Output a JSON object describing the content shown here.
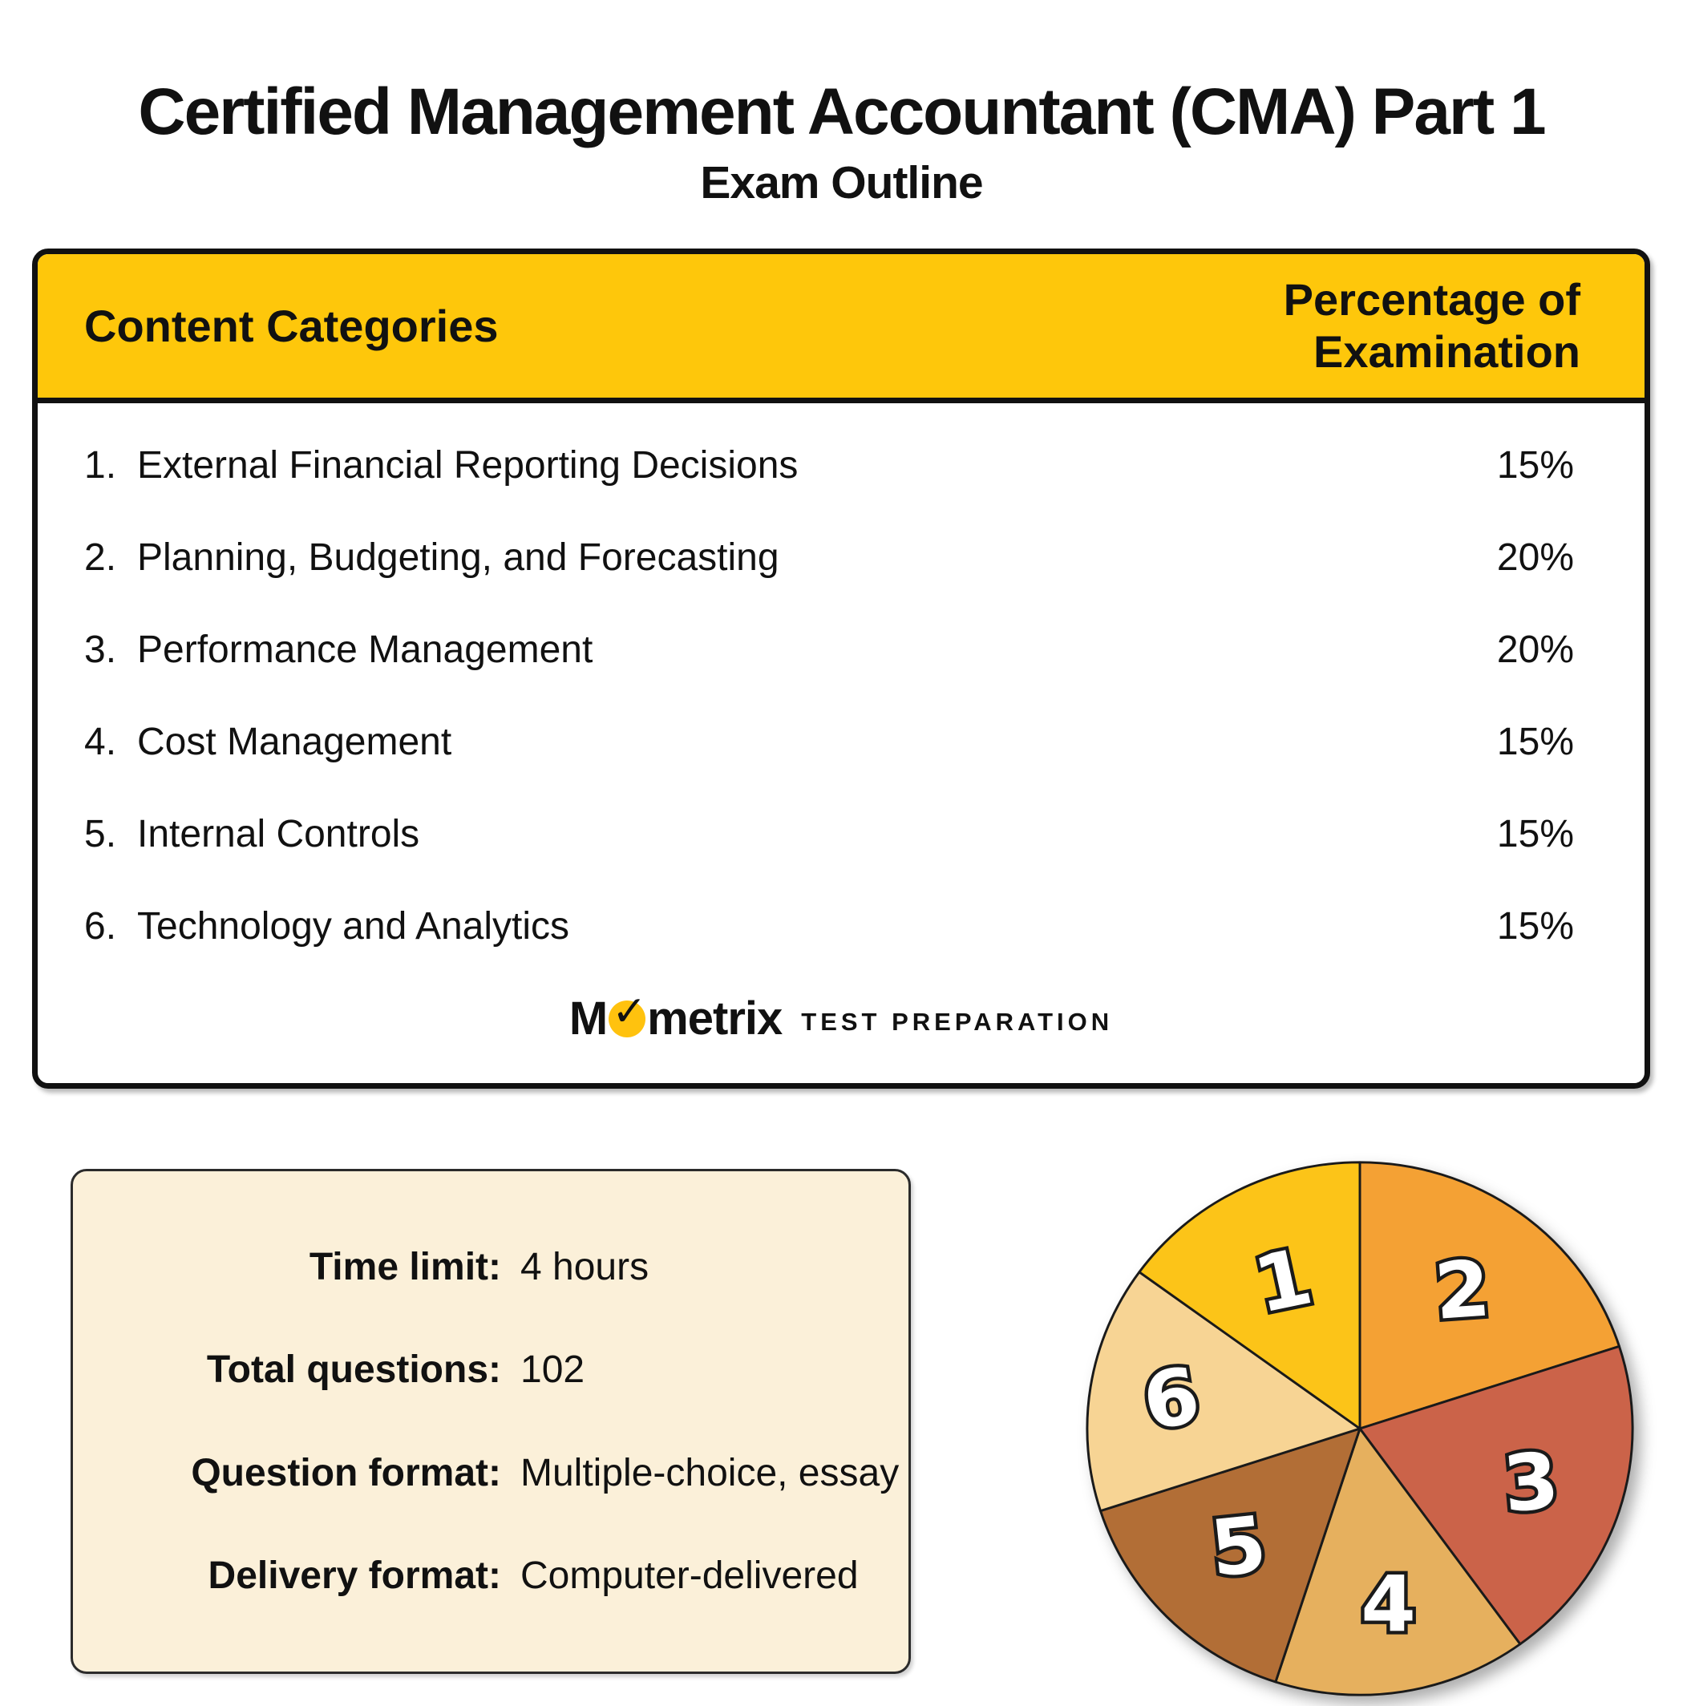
{
  "title": "Certified Management Accountant (CMA) Part 1",
  "subtitle": "Exam Outline",
  "table": {
    "header": {
      "left": "Content Categories",
      "right": "Percentage of Examination"
    },
    "rows": [
      {
        "num": "1.",
        "label": "External Financial Reporting Decisions",
        "pct": "15%"
      },
      {
        "num": "2.",
        "label": "Planning, Budgeting, and Forecasting",
        "pct": "20%"
      },
      {
        "num": "3.",
        "label": "Performance Management",
        "pct": "20%"
      },
      {
        "num": "4.",
        "label": "Cost Management",
        "pct": "15%"
      },
      {
        "num": "5.",
        "label": "Internal Controls",
        "pct": "15%"
      },
      {
        "num": "6.",
        "label": "Technology and Analytics",
        "pct": "15%"
      }
    ]
  },
  "logo": {
    "word_start": "M",
    "word_end": "metrix",
    "check": "✓",
    "tagline": "TEST PREPARATION"
  },
  "info": {
    "rows": [
      {
        "label": "Time limit:",
        "value": "4 hours"
      },
      {
        "label": "Total questions:",
        "value": "102"
      },
      {
        "label": "Question format:",
        "value": "Multiple-choice, essay"
      },
      {
        "label": "Delivery format:",
        "value": "Computer-delivered"
      }
    ]
  },
  "colors": {
    "ink": "#111111",
    "header_yellow": "#FEC70B",
    "logo_yellow": "#FFC20E",
    "info_bg": "#FBF0D9"
  },
  "chart_data": {
    "type": "pie",
    "title": "CMA Part 1 content weighting by category",
    "segments": [
      {
        "label": "1",
        "value": 15,
        "color": "#FCC418"
      },
      {
        "label": "2",
        "value": 20,
        "color": "#F4A134"
      },
      {
        "label": "3",
        "value": 20,
        "color": "#CB6349"
      },
      {
        "label": "4",
        "value": 15,
        "color": "#E6B05E"
      },
      {
        "label": "5",
        "value": 15,
        "color": "#B26E36"
      },
      {
        "label": "6",
        "value": 15,
        "color": "#F7D494"
      }
    ],
    "order_clockwise_from_top": [
      "2",
      "3",
      "4",
      "5",
      "6",
      "1"
    ],
    "units": "percent",
    "total": 100,
    "legend": "none",
    "labels_inside_slices": true
  }
}
